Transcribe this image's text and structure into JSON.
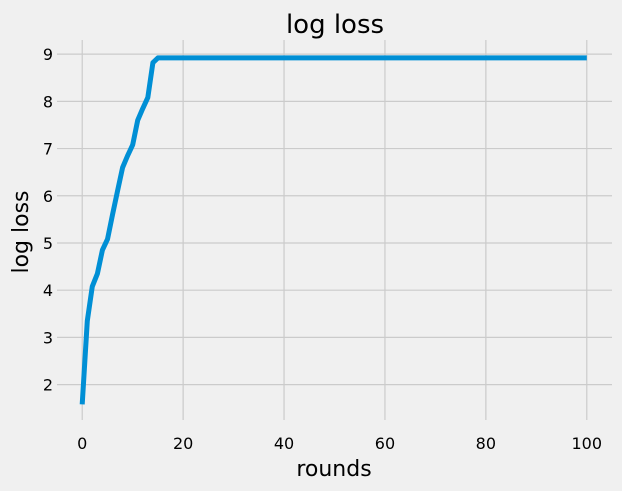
{
  "chart_data": {
    "type": "line",
    "title": "log loss",
    "xlabel": "rounds",
    "ylabel": "log loss",
    "xlim": [
      -5,
      105
    ],
    "ylim": [
      1.25,
      9.3
    ],
    "xticks": [
      0,
      20,
      40,
      60,
      80,
      100
    ],
    "yticks": [
      2,
      3,
      4,
      5,
      6,
      7,
      8,
      9
    ],
    "grid": true,
    "colors": {
      "background": "#f0f0f0",
      "grid": "#cbcbcb",
      "line": "#008fd5"
    },
    "series": [
      {
        "x": [
          0,
          1,
          2,
          3,
          4,
          5,
          6,
          7,
          8,
          9,
          10,
          11,
          12,
          13,
          14,
          15,
          20,
          40,
          60,
          80,
          100
        ],
        "values": [
          1.58,
          3.35,
          4.08,
          4.35,
          4.85,
          5.08,
          5.6,
          6.1,
          6.6,
          6.85,
          7.08,
          7.6,
          7.85,
          8.08,
          8.82,
          8.92,
          8.92,
          8.92,
          8.92,
          8.92,
          8.92
        ]
      }
    ]
  }
}
